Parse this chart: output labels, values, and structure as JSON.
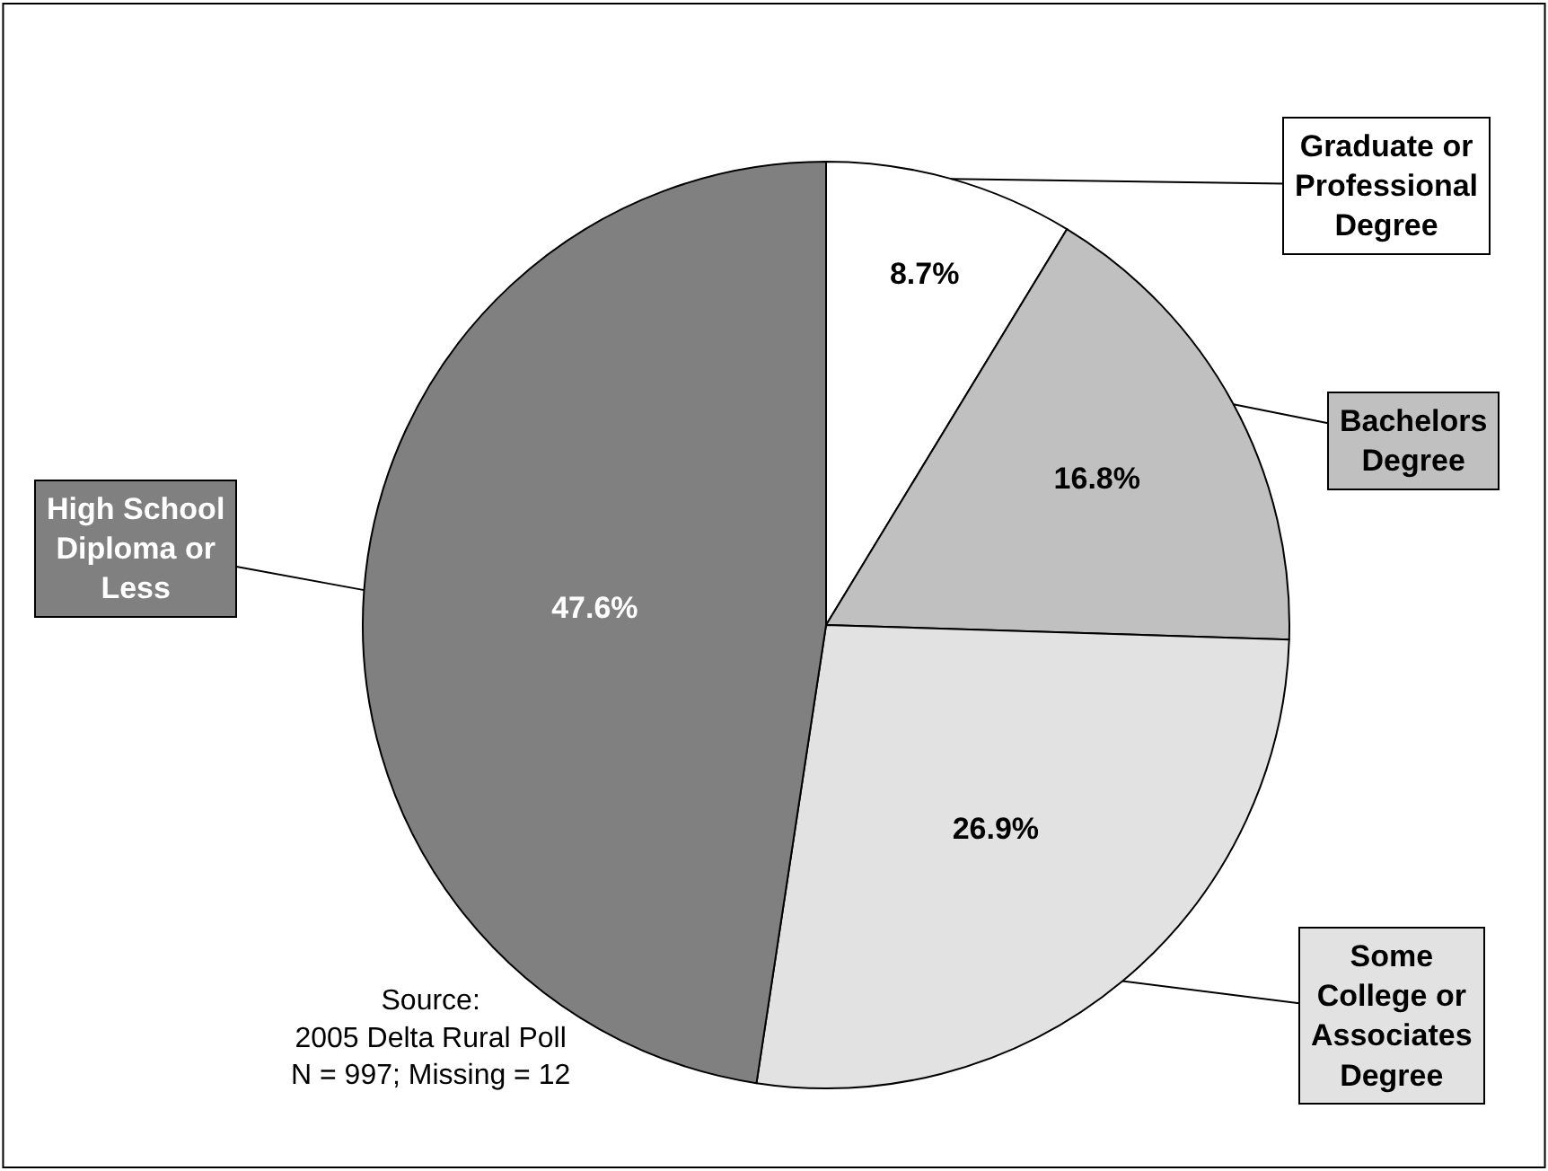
{
  "chart_data": {
    "type": "pie",
    "categories": [
      "Graduate or\nProfessional\nDegree",
      "Bachelors\nDegree",
      "Some\nCollege or\nAssociates\nDegree",
      "High School\nDiploma or\nLess"
    ],
    "values": [
      8.7,
      16.8,
      26.9,
      47.6
    ],
    "colors": [
      "#ffffff",
      "#c0c0c0",
      "#e2e2e2",
      "#808080"
    ],
    "value_labels": [
      "8.7%",
      "16.8%",
      "26.9%",
      "47.6%"
    ],
    "annotations": [
      "Source:\n2005 Delta Rural Poll\nN = 997; Missing = 12"
    ],
    "legend": false
  }
}
